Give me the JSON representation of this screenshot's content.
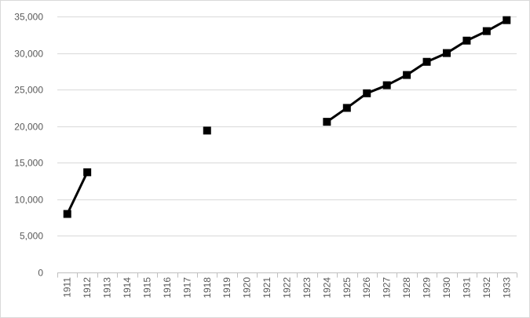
{
  "chart_data": {
    "type": "line",
    "title": "",
    "xlabel": "",
    "ylabel": "",
    "categories": [
      "1911",
      "1912",
      "1913",
      "1914",
      "1915",
      "1916",
      "1917",
      "1918",
      "1919",
      "1920",
      "1921",
      "1922",
      "1923",
      "1924",
      "1925",
      "1926",
      "1927",
      "1928",
      "1929",
      "1930",
      "1931",
      "1932",
      "1933"
    ],
    "ylim": [
      0,
      35000
    ],
    "y_ticks": [
      0,
      5000,
      10000,
      15000,
      20000,
      25000,
      30000,
      35000
    ],
    "y_tick_labels": [
      "0",
      "5,000",
      "10,000",
      "15,000",
      "20,000",
      "25,000",
      "30,000",
      "35,000"
    ],
    "grid": "horizontal",
    "legend": "none",
    "series": [
      {
        "color": "#000000",
        "marker": "square",
        "values": [
          8000,
          13700,
          null,
          null,
          null,
          null,
          null,
          19400,
          null,
          null,
          null,
          null,
          null,
          20600,
          22500,
          24500,
          25600,
          27000,
          28800,
          30000,
          31700,
          33000,
          34500
        ]
      }
    ]
  }
}
